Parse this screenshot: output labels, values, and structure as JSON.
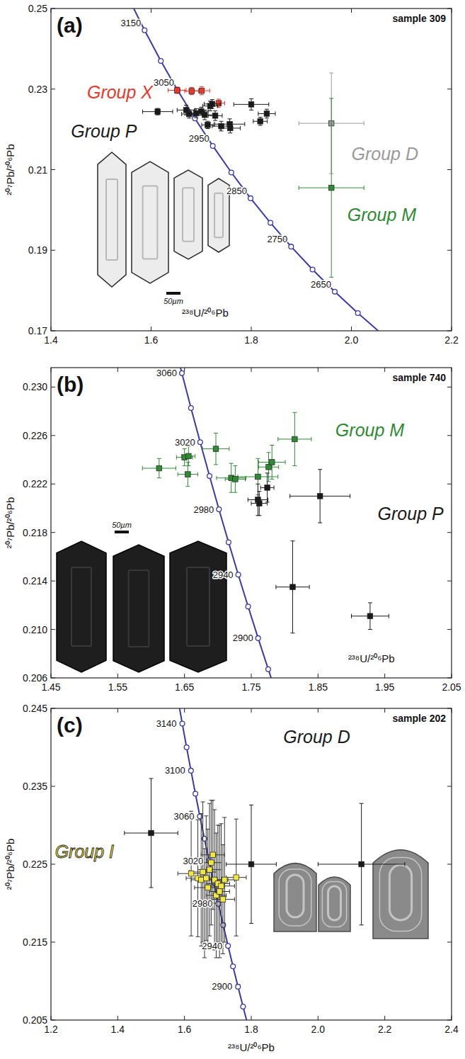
{
  "chart_data": [
    {
      "type": "scatter",
      "panel": "(a)",
      "title": "sample 309",
      "x_label": "²³⁸U/²⁰⁶Pb",
      "y_label": "²⁰⁷Pb/²⁰⁶Pb",
      "marker": "square",
      "scale_bar": "50µm",
      "xlim": [
        1.4,
        2.2
      ],
      "xticks": [
        1.4,
        1.6,
        1.8,
        {
          "value": 2,
          "label": "2.0"
        },
        2.2
      ],
      "ylim": [
        0.17,
        0.25
      ],
      "yticks": [
        0.17,
        0.19,
        0.21,
        0.23,
        0.25
      ],
      "concordia": {
        "color": "#3a3aa8",
        "marker": "circle",
        "x": [
          1.5557,
          1.587,
          1.6194,
          1.6529,
          1.6875,
          1.7232,
          1.7603,
          1.7986,
          1.8384,
          1.8796,
          1.9224,
          1.9668,
          2.0129,
          2.0609
        ],
        "values": [
          0.2524,
          0.2446,
          0.237,
          0.2297,
          0.2227,
          0.2159,
          0.2093,
          0.2029,
          0.1968,
          0.1909,
          0.1852,
          0.1797,
          0.1744,
          0.1692
        ],
        "labels": [
          null,
          3150,
          null,
          3050,
          null,
          2950,
          null,
          2850,
          null,
          2750,
          null,
          2650,
          null,
          null
        ]
      },
      "series": [
        {
          "name": "Group X",
          "color": "#e8392b",
          "x": [
            1.652,
            1.681,
            1.701,
            1.735
          ],
          "values": [
            0.2297,
            0.2295,
            0.2296,
            0.2265
          ],
          "errors": [
            0.0008,
            0.0009,
            0.001,
            0.001
          ],
          "x_errors": [
            0.018,
            0.014,
            0.016,
            0.012
          ]
        },
        {
          "name": "Group P",
          "color": "#1a1a1a",
          "x": [
            1.613,
            1.67,
            1.676,
            1.69,
            1.7,
            1.707,
            1.718,
            1.722,
            1.713,
            1.728,
            1.74,
            1.757,
            1.758,
            1.8,
            1.818,
            1.831
          ],
          "values": [
            0.2244,
            0.2248,
            0.2238,
            0.224,
            0.2245,
            0.2236,
            0.2258,
            0.2263,
            0.2211,
            0.2234,
            0.2208,
            0.2213,
            0.2203,
            0.2262,
            0.222,
            0.2239
          ],
          "errors": [
            0.0008,
            0.0012,
            0.001,
            0.0011,
            0.001,
            0.0012,
            0.0012,
            0.0011,
            0.0009,
            0.0012,
            0.0012,
            0.0013,
            0.0012,
            0.0014,
            0.001,
            0.0011
          ],
          "x_errors": [
            0.03,
            0.018,
            0.015,
            0.016,
            0.014,
            0.02,
            0.015,
            0.016,
            0.012,
            0.014,
            0.018,
            0.03,
            0.02,
            0.035,
            0.014,
            0.017
          ]
        },
        {
          "name": "Group D",
          "color": "#9a9a9a",
          "x": [
            1.96
          ],
          "values": [
            0.2215
          ],
          "errors": [
            0.0125
          ],
          "x_errors": [
            0.065
          ]
        },
        {
          "name": "Group M",
          "color": "#2e8b34",
          "x": [
            1.96
          ],
          "values": [
            0.2055
          ],
          "errors": [
            0.0222
          ],
          "x_errors": [
            0.065
          ]
        }
      ]
    },
    {
      "type": "scatter",
      "panel": "(b)",
      "title": "sample 740",
      "x_label": "²³⁸U/²⁰⁶Pb",
      "y_label": "²⁰⁷Pb/²⁰⁶Pb",
      "marker": "square",
      "scale_bar": "50µm",
      "xlim": [
        1.45,
        2.05
      ],
      "xticks": [
        1.45,
        1.55,
        1.65,
        1.75,
        1.85,
        1.95,
        2.05
      ],
      "ylim": [
        0.206,
        0.2316
      ],
      "yticks": [
        0.206,
        {
          "value": 0.21,
          "label": "0.210"
        },
        0.214,
        0.218,
        0.222,
        0.226,
        {
          "value": 0.23,
          "label": "0.230"
        }
      ],
      "concordia": {
        "color": "#3a3aa8",
        "marker": "circle",
        "x": [
          1.6327,
          1.6461,
          1.6597,
          1.6735,
          1.6875,
          1.7016,
          1.716,
          1.7305,
          1.7453,
          1.7603,
          1.7754,
          1.7908
        ],
        "values": [
          0.23405,
          0.23114,
          0.22827,
          0.22545,
          0.22266,
          0.21991,
          0.21719,
          0.21452,
          0.21189,
          0.20928,
          0.20672,
          0.20419
        ],
        "labels": [
          null,
          3060,
          null,
          3020,
          null,
          2980,
          null,
          2940,
          null,
          2900,
          null,
          null
        ]
      },
      "series": [
        {
          "name": "Group M",
          "color": "#2e8b34",
          "x": [
            1.612,
            1.65,
            1.656,
            1.655,
            1.697,
            1.72,
            1.726,
            1.76,
            1.776,
            1.781,
            1.815
          ],
          "values": [
            0.2233,
            0.2242,
            0.2243,
            0.2228,
            0.2249,
            0.2225,
            0.2224,
            0.2226,
            0.2234,
            0.2238,
            0.2257
          ],
          "errors": [
            0.0008,
            0.0007,
            0.0008,
            0.001,
            0.0013,
            0.0012,
            0.0011,
            0.0015,
            0.0012,
            0.0014,
            0.0022
          ],
          "x_errors": [
            0.025,
            0.012,
            0.01,
            0.015,
            0.02,
            0.022,
            0.015,
            0.03,
            0.015,
            0.02,
            0.025
          ]
        },
        {
          "name": "Group P",
          "color": "#1a1a1a",
          "x": [
            1.76,
            1.762,
            1.774,
            1.853,
            1.812,
            1.928
          ],
          "values": [
            0.2207,
            0.2204,
            0.2217,
            0.221,
            0.2135,
            0.2111
          ],
          "errors": [
            0.0013,
            0.001,
            0.0012,
            0.0022,
            0.0038,
            0.0011
          ],
          "x_errors": [
            0.015,
            0.012,
            0.01,
            0.045,
            0.025,
            0.028
          ]
        }
      ]
    },
    {
      "type": "scatter",
      "panel": "(c)",
      "title": "sample 202",
      "x_label": "²³⁸U/²⁰⁶Pb",
      "y_label": "²⁰⁷Pb/²⁰⁶Pb",
      "marker": "square",
      "xlim": [
        1.2,
        2.4
      ],
      "xticks": [
        1.2,
        1.4,
        1.6,
        1.8,
        {
          "value": 2,
          "label": "2.0"
        },
        2.2,
        2.4
      ],
      "ylim": [
        0.205,
        0.245
      ],
      "yticks": [
        0.205,
        0.215,
        0.225,
        0.235,
        0.245
      ],
      "concordia": {
        "color": "#3a3aa8",
        "marker": "circle",
        "x": [
          1.5807,
          1.5934,
          1.6063,
          1.6194,
          1.6327,
          1.6461,
          1.6597,
          1.6735,
          1.6875,
          1.7016,
          1.716,
          1.7305,
          1.7453,
          1.7603,
          1.7754,
          1.7908
        ],
        "values": [
          0.24612,
          0.24304,
          0.24,
          0.23701,
          0.23405,
          0.23114,
          0.22827,
          0.22545,
          0.22266,
          0.21991,
          0.21719,
          0.21452,
          0.21189,
          0.20928,
          0.20672,
          0.20419
        ],
        "labels": [
          null,
          3140,
          null,
          3100,
          null,
          3060,
          null,
          3020,
          null,
          2980,
          null,
          2940,
          null,
          2900,
          null,
          null
        ]
      },
      "series": [
        {
          "name": "Group I",
          "color": "#f2e640",
          "x": [
            1.62,
            1.64,
            1.65,
            1.655,
            1.66,
            1.665,
            1.67,
            1.675,
            1.68,
            1.685,
            1.69,
            1.695,
            1.7,
            1.705,
            1.71,
            1.715,
            1.72,
            1.755
          ],
          "values": [
            0.2238,
            0.2232,
            0.223,
            0.224,
            0.22,
            0.2232,
            0.222,
            0.2243,
            0.2252,
            0.2262,
            0.223,
            0.221,
            0.2225,
            0.2215,
            0.2222,
            0.2205,
            0.223,
            0.2233
          ],
          "errors": [
            0.008,
            0.0075,
            0.0085,
            0.009,
            0.007,
            0.008,
            0.0075,
            0.0085,
            0.008,
            0.007,
            0.009,
            0.008,
            0.0075,
            0.0085,
            0.008,
            0.007,
            0.008,
            0.0075
          ],
          "x_errors": [
            0.04,
            0.035,
            0.03,
            0.04,
            0.035,
            0.03,
            0.04,
            0.035,
            0.03,
            0.035,
            0.04,
            0.03,
            0.035,
            0.03,
            0.04,
            0.035,
            0.03,
            0.03
          ]
        },
        {
          "name": "Group D",
          "color": "#1a1a1a",
          "x": [
            1.5,
            1.8,
            2.13
          ],
          "values": [
            0.229,
            0.225,
            0.225
          ],
          "errors": [
            0.007,
            0.0076,
            0.0078
          ],
          "x_errors": [
            0.08,
            0.075,
            0.13
          ]
        }
      ]
    }
  ]
}
